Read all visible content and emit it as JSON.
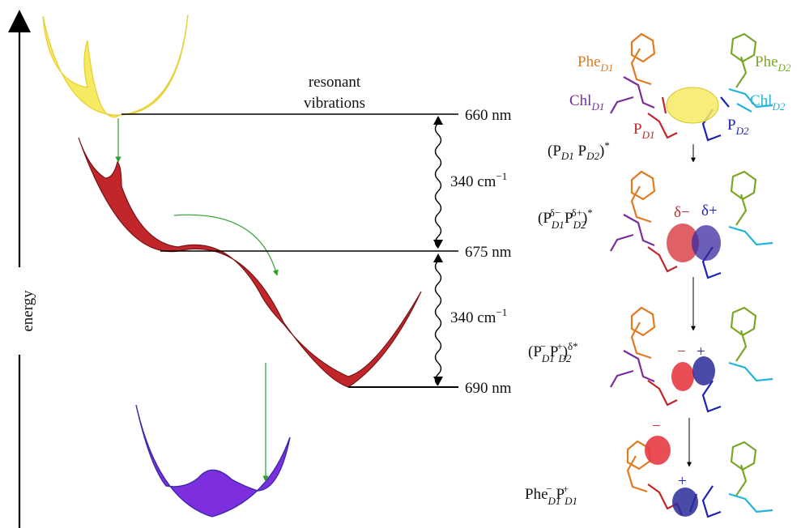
{
  "axis": {
    "label": "energy"
  },
  "annotations": {
    "resonant_line1": "resonant",
    "resonant_line2": "vibrations"
  },
  "levels": [
    {
      "wavelength": "660 nm"
    },
    {
      "wavelength": "675 nm"
    },
    {
      "wavelength": "690 nm"
    }
  ],
  "gaps": [
    {
      "label": "340 cm",
      "exp": "−1"
    },
    {
      "label": "340 cm",
      "exp": "−1"
    }
  ],
  "labels": {
    "phe": "Phe",
    "chl": "Chl",
    "p": "P",
    "d1": "D1",
    "d2": "D2",
    "delta_minus": "δ−",
    "delta_plus": "δ+",
    "minus": "−",
    "plus": "+",
    "star": "*",
    "delta_star": "δ*"
  },
  "colors": {
    "yellow": "#f7ea63",
    "red": "#c0262a",
    "purple": "#7d2fe0",
    "orange": "#e07b22",
    "olive": "#7aa728",
    "violet": "#7a2b9c",
    "cyan": "#22b5d8",
    "blue": "#1d24b5",
    "green_arrow": "#2aa02a"
  }
}
